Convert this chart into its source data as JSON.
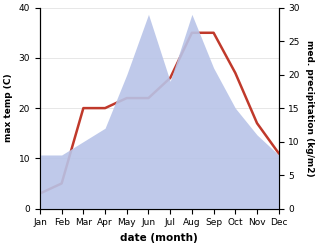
{
  "months": [
    "Jan",
    "Feb",
    "Mar",
    "Apr",
    "May",
    "Jun",
    "Jul",
    "Aug",
    "Sep",
    "Oct",
    "Nov",
    "Dec"
  ],
  "temperature": [
    3,
    5,
    20,
    20,
    22,
    22,
    26,
    35,
    35,
    27,
    17,
    11
  ],
  "precipitation": [
    8,
    8,
    10,
    12,
    20,
    29,
    19,
    29,
    21,
    15,
    11,
    8
  ],
  "temp_color": "#c0392b",
  "precip_color": "#b8c4e8",
  "title": "",
  "xlabel": "date (month)",
  "ylabel_left": "max temp (C)",
  "ylabel_right": "med. precipitation (kg/m2)",
  "ylim_left": [
    0,
    40
  ],
  "ylim_right": [
    0,
    30
  ],
  "temp_linewidth": 1.8,
  "bg_color": "#ffffff"
}
